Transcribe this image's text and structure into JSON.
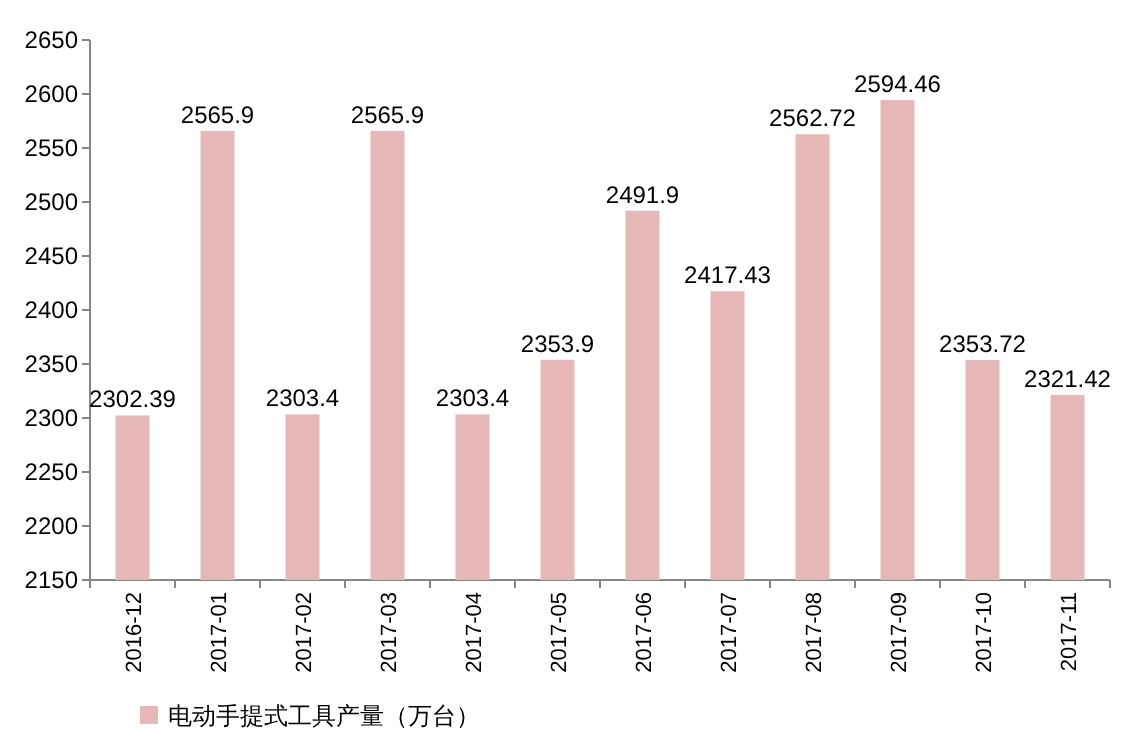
{
  "chart_data": {
    "type": "bar",
    "categories": [
      "2016-12",
      "2017-01",
      "2017-02",
      "2017-03",
      "2017-04",
      "2017-05",
      "2017-06",
      "2017-07",
      "2017-08",
      "2017-09",
      "2017-10",
      "2017-11"
    ],
    "series": [
      {
        "name": "电动手提式工具产量（万台）",
        "color": "#e6b9b8",
        "values": [
          2302.39,
          2565.9,
          2303.4,
          2565.9,
          2303.4,
          2353.9,
          2491.9,
          2417.43,
          2562.72,
          2594.46,
          2353.72,
          2321.42
        ]
      }
    ],
    "ylim": [
      2150,
      2650
    ],
    "yticks": [
      2150,
      2200,
      2250,
      2300,
      2350,
      2400,
      2450,
      2500,
      2550,
      2600,
      2650
    ],
    "data_labels": true,
    "grid": false,
    "legend": "bottom left"
  }
}
